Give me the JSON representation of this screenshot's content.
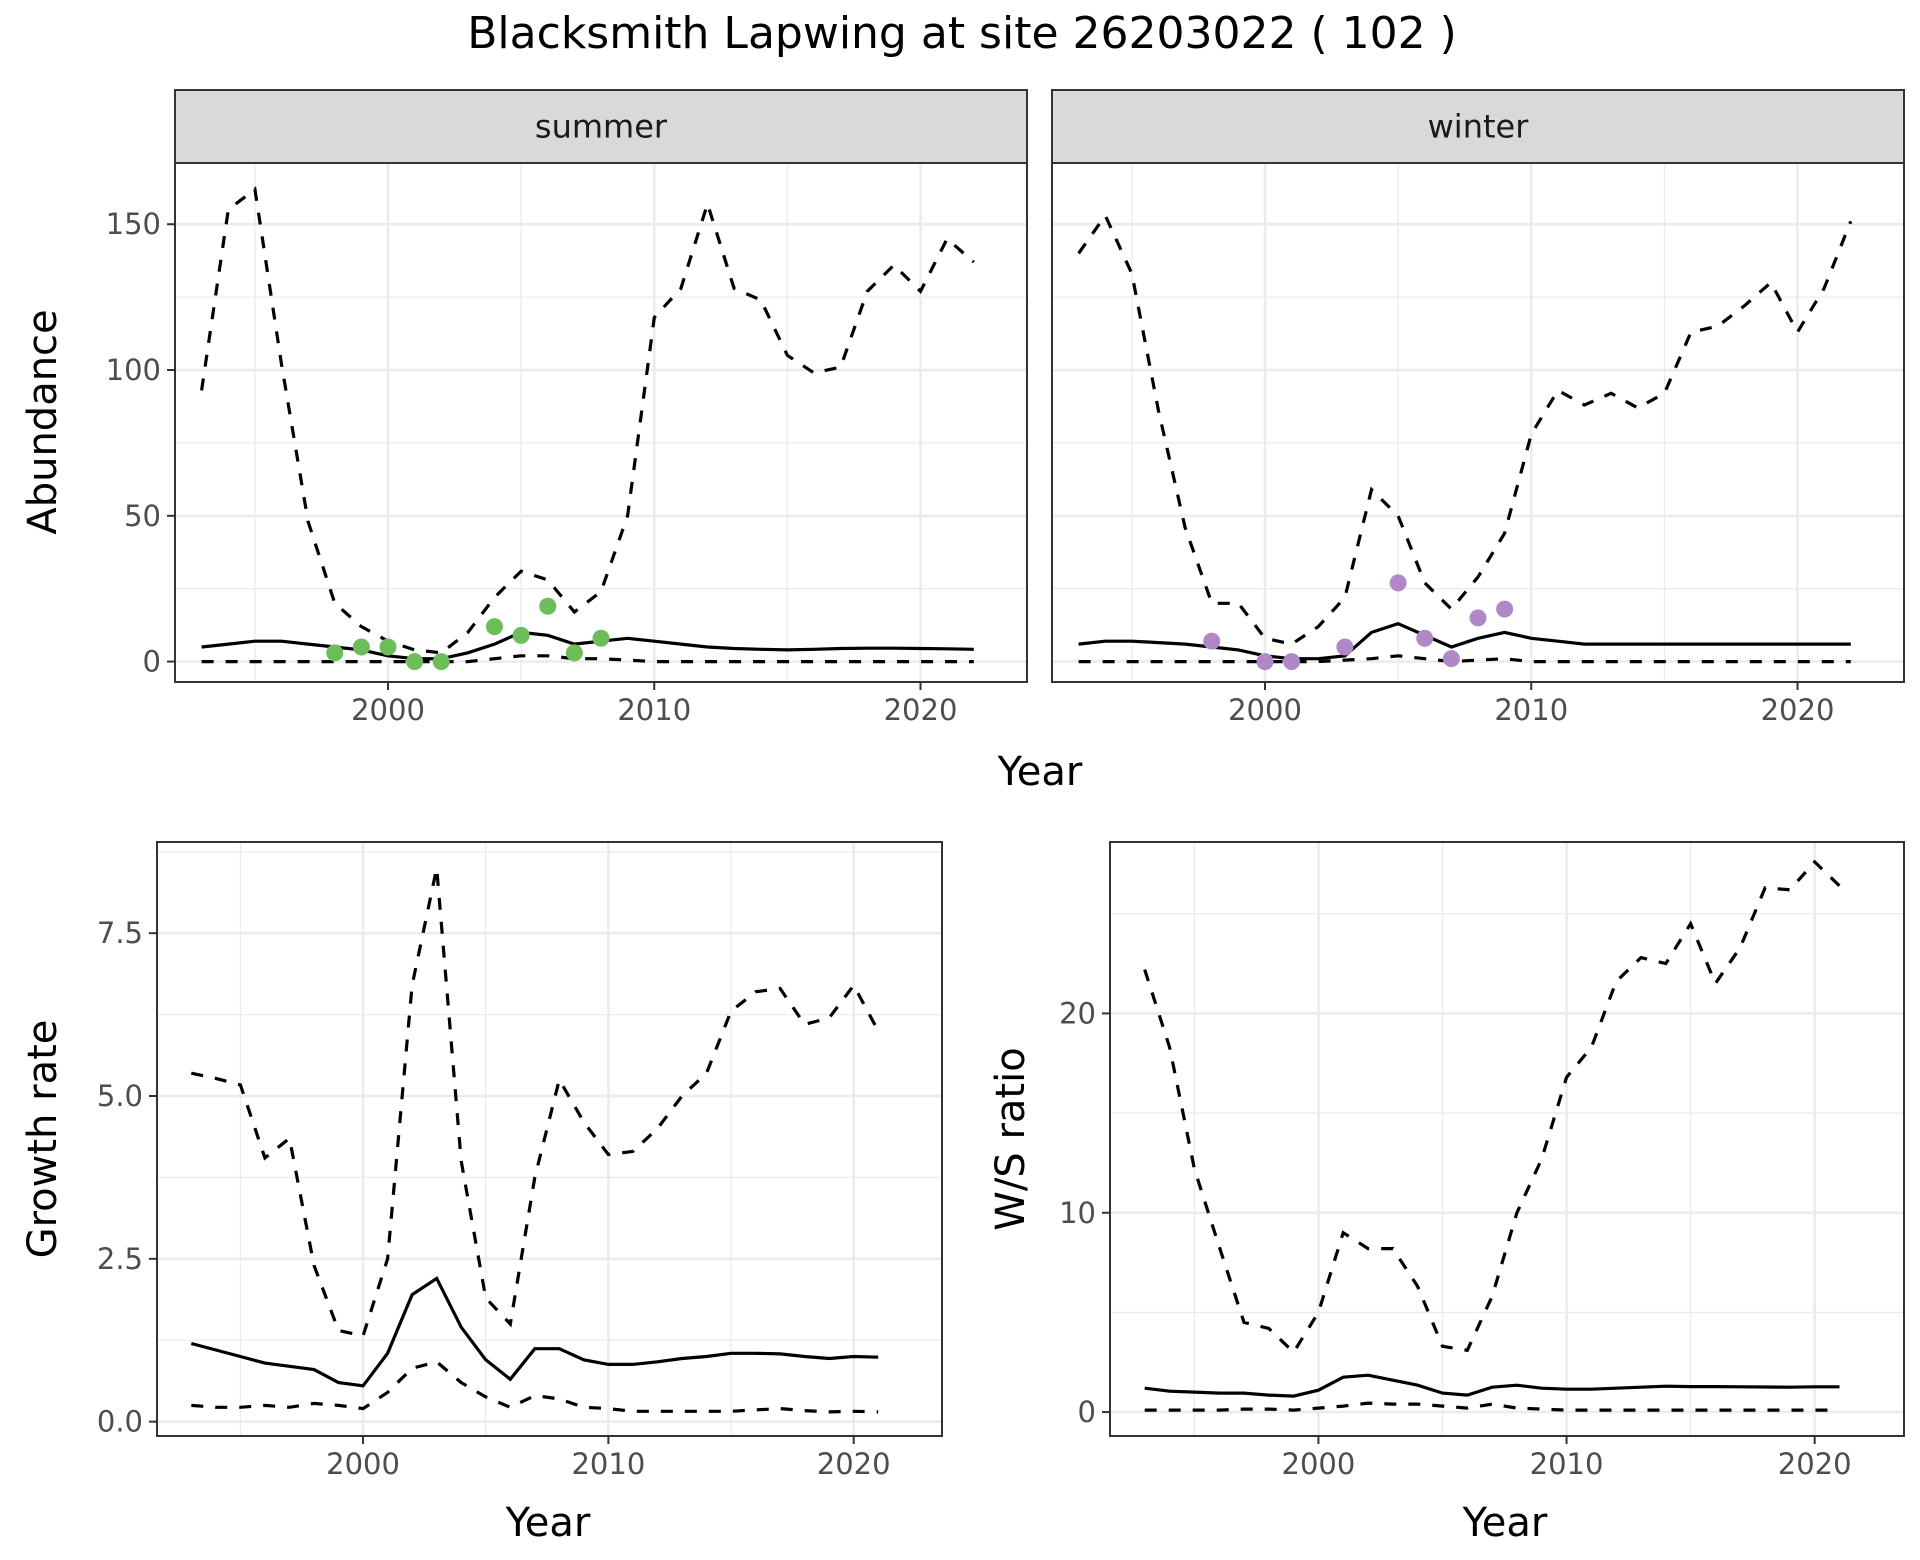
{
  "title": "Blacksmith Lapwing at site 26203022 ( 102 )",
  "chart_data": [
    {
      "type": "line",
      "facet": "summer",
      "ylabel": "Abundance",
      "xlabel": "Year",
      "xlim": [
        1992,
        2024
      ],
      "ylim": [
        -7,
        171
      ],
      "x_ticks": [
        2000,
        2010,
        2020
      ],
      "y_ticks": [
        0,
        50,
        100,
        150
      ],
      "point_color": "#6DBD5B",
      "years": [
        1993,
        1994,
        1995,
        1996,
        1997,
        1998,
        1999,
        2000,
        2001,
        2002,
        2003,
        2004,
        2005,
        2006,
        2007,
        2008,
        2009,
        2010,
        2011,
        2012,
        2013,
        2014,
        2015,
        2016,
        2017,
        2018,
        2019,
        2020,
        2021,
        2022
      ],
      "series": [
        {
          "role": "median",
          "values": [
            5,
            6,
            7,
            7,
            6,
            5,
            4,
            2,
            1,
            1,
            3,
            6,
            10,
            9,
            6,
            7,
            8,
            7,
            6,
            5,
            4.5,
            4.2,
            4,
            4.2,
            4.5,
            4.6,
            4.6,
            4.5,
            4.4,
            4.2
          ]
        },
        {
          "role": "upper",
          "values": [
            93,
            155,
            162,
            102,
            48,
            20,
            12,
            7,
            4,
            3,
            10,
            22,
            31,
            28,
            17,
            24,
            50,
            118,
            128,
            157,
            128,
            124,
            105,
            99,
            101,
            127,
            136,
            127,
            145,
            137
          ]
        },
        {
          "role": "lower",
          "values": [
            0,
            0,
            0,
            0,
            0,
            0,
            0,
            0,
            0,
            0,
            0,
            1,
            2,
            2,
            1,
            1,
            0.5,
            0,
            0,
            0,
            0,
            0,
            0,
            0,
            0,
            0,
            0,
            0,
            0,
            0
          ]
        }
      ],
      "observed": {
        "x": [
          1998,
          1999,
          2000,
          2001,
          2002,
          2004,
          2005,
          2006,
          2007,
          2008
        ],
        "y": [
          3,
          5,
          5,
          0,
          0,
          12,
          9,
          19,
          3,
          8
        ]
      }
    },
    {
      "type": "line",
      "facet": "winter",
      "xlabel": "Year",
      "xlim": [
        1992,
        2024
      ],
      "ylim": [
        -7,
        171
      ],
      "x_ticks": [
        2000,
        2010,
        2020
      ],
      "point_color": "#B088C8",
      "years": [
        1993,
        1994,
        1995,
        1996,
        1997,
        1998,
        1999,
        2000,
        2001,
        2002,
        2003,
        2004,
        2005,
        2006,
        2007,
        2008,
        2009,
        2010,
        2011,
        2012,
        2013,
        2014,
        2015,
        2016,
        2017,
        2018,
        2019,
        2020,
        2021,
        2022
      ],
      "series": [
        {
          "role": "median",
          "values": [
            6,
            7,
            7,
            6.5,
            6,
            5,
            4,
            2,
            1,
            1,
            2,
            10,
            13,
            9,
            5,
            8,
            10,
            8,
            7,
            6,
            6,
            6,
            6,
            6,
            6,
            6,
            6,
            6,
            6,
            6
          ]
        },
        {
          "role": "upper",
          "values": [
            140,
            153,
            133,
            86,
            46,
            20,
            20,
            8,
            6,
            12,
            22,
            59,
            50,
            27,
            18,
            29,
            44,
            78,
            93,
            88,
            92,
            87,
            92,
            113,
            115,
            122,
            130,
            113,
            128,
            151
          ]
        },
        {
          "role": "lower",
          "values": [
            0,
            0,
            0,
            0,
            0,
            0,
            0,
            0,
            0,
            0,
            0.5,
            1,
            2,
            1,
            0,
            0.5,
            1,
            0,
            0,
            0,
            0,
            0,
            0,
            0,
            0,
            0,
            0,
            0,
            0,
            0
          ]
        }
      ],
      "observed": {
        "x": [
          1998,
          2000,
          2001,
          2003,
          2005,
          2006,
          2007,
          2008,
          2009
        ],
        "y": [
          7,
          0,
          0,
          5,
          27,
          8,
          1,
          15,
          18
        ]
      }
    },
    {
      "type": "line",
      "ylabel": "Growth rate",
      "xlabel": "Year",
      "xlim": [
        1991.6,
        2023.6
      ],
      "ylim": [
        -0.22,
        8.9
      ],
      "x_ticks": [
        2000,
        2010,
        2020
      ],
      "y_ticks": [
        0.0,
        2.5,
        5.0,
        7.5
      ],
      "y_tick_labels": [
        "0.0",
        "2.5",
        "5.0",
        "7.5"
      ],
      "years": [
        1993,
        1994,
        1995,
        1996,
        1997,
        1998,
        1999,
        2000,
        2001,
        2002,
        2003,
        2004,
        2005,
        2006,
        2007,
        2008,
        2009,
        2010,
        2011,
        2012,
        2013,
        2014,
        2015,
        2016,
        2017,
        2018,
        2019,
        2020,
        2021
      ],
      "series": [
        {
          "role": "median",
          "values": [
            1.2,
            1.1,
            1.0,
            0.9,
            0.85,
            0.8,
            0.6,
            0.55,
            1.05,
            1.95,
            2.2,
            1.45,
            0.95,
            0.65,
            1.12,
            1.12,
            0.95,
            0.88,
            0.88,
            0.92,
            0.97,
            1.0,
            1.05,
            1.05,
            1.04,
            1.0,
            0.97,
            1.0,
            0.99
          ]
        },
        {
          "role": "upper",
          "values": [
            5.35,
            5.27,
            5.17,
            4.05,
            4.35,
            2.4,
            1.4,
            1.32,
            2.5,
            6.7,
            8.5,
            4.0,
            1.9,
            1.5,
            3.75,
            5.25,
            4.6,
            4.1,
            4.15,
            4.5,
            5.0,
            5.35,
            6.3,
            6.6,
            6.65,
            6.1,
            6.2,
            6.7,
            6.0
          ]
        },
        {
          "role": "lower",
          "values": [
            0.25,
            0.22,
            0.22,
            0.25,
            0.22,
            0.28,
            0.25,
            0.2,
            0.45,
            0.82,
            0.92,
            0.6,
            0.38,
            0.22,
            0.4,
            0.35,
            0.22,
            0.2,
            0.16,
            0.16,
            0.16,
            0.16,
            0.16,
            0.18,
            0.2,
            0.17,
            0.15,
            0.16,
            0.15
          ]
        }
      ]
    },
    {
      "type": "line",
      "ylabel": "W/S ratio",
      "xlabel": "Year",
      "xlim": [
        1991.6,
        2023.6
      ],
      "ylim": [
        -1.2,
        28.6
      ],
      "x_ticks": [
        2000,
        2010,
        2020
      ],
      "y_ticks": [
        0,
        10,
        20
      ],
      "years": [
        1993,
        1994,
        1995,
        1996,
        1997,
        1998,
        1999,
        2000,
        2001,
        2002,
        2003,
        2004,
        2005,
        2006,
        2007,
        2008,
        2009,
        2010,
        2011,
        2012,
        2013,
        2014,
        2015,
        2016,
        2017,
        2018,
        2019,
        2020,
        2021
      ],
      "series": [
        {
          "role": "median",
          "values": [
            1.2,
            1.05,
            1.0,
            0.95,
            0.95,
            0.85,
            0.8,
            1.1,
            1.75,
            1.85,
            1.6,
            1.35,
            0.95,
            0.85,
            1.25,
            1.35,
            1.2,
            1.15,
            1.15,
            1.2,
            1.25,
            1.3,
            1.28,
            1.28,
            1.27,
            1.26,
            1.25,
            1.27,
            1.27
          ]
        },
        {
          "role": "upper",
          "values": [
            22.2,
            18.3,
            12.2,
            8.3,
            4.5,
            4.2,
            3.0,
            5.0,
            9.0,
            8.2,
            8.2,
            6.3,
            3.3,
            3.1,
            5.8,
            10.0,
            12.7,
            16.8,
            18.3,
            21.6,
            22.8,
            22.5,
            24.5,
            21.5,
            23.3,
            26.3,
            26.2,
            27.6,
            26.4
          ]
        },
        {
          "role": "lower",
          "values": [
            0.1,
            0.1,
            0.1,
            0.1,
            0.15,
            0.15,
            0.1,
            0.2,
            0.3,
            0.45,
            0.4,
            0.4,
            0.3,
            0.2,
            0.4,
            0.2,
            0.15,
            0.1,
            0.1,
            0.1,
            0.1,
            0.1,
            0.1,
            0.1,
            0.1,
            0.1,
            0.1,
            0.1,
            0.1
          ]
        }
      ]
    }
  ]
}
